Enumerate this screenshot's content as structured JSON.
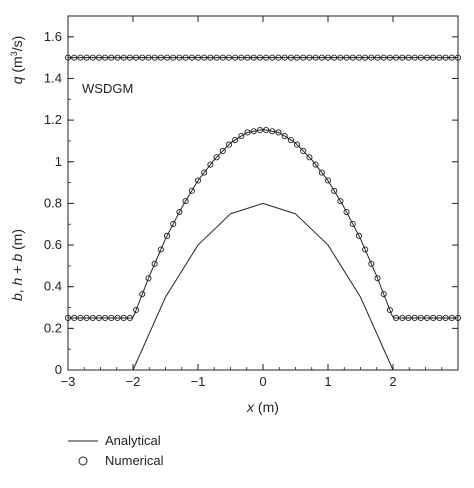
{
  "chart_data": {
    "type": "line",
    "annotation": "WSDGM",
    "xlabel": {
      "var": "x",
      "unit": " (m)"
    },
    "ylabel": {
      "lower_var1": "b",
      "sep": ", ",
      "lower_var2": "h",
      "plus": " + ",
      "lower_var3": "b",
      "lower_unit": " (m)",
      "upper_var": "q",
      "upper_unit_open": " (m",
      "upper_unit_sup": "3",
      "upper_unit_close": "/s)"
    },
    "xlim": [
      -3,
      3
    ],
    "ylim": [
      0,
      1.7
    ],
    "x_ticks": [
      "−3",
      "−2",
      "−1",
      "0",
      "1",
      "2"
    ],
    "y_ticks": [
      "0",
      "0.2",
      "0.4",
      "0.6",
      "0.8",
      "1",
      "1.2",
      "1.4",
      "1.6"
    ],
    "grid": false,
    "legend": {
      "position": "below",
      "entries": [
        {
          "label": "Analytical",
          "marker": "line"
        },
        {
          "label": "Numerical",
          "marker": "circle"
        }
      ]
    },
    "series": [
      {
        "name": "Analytical",
        "role": "discharge q",
        "style": "line",
        "x": [
          -3,
          3
        ],
        "y": [
          1.5,
          1.5
        ]
      },
      {
        "name": "Numerical",
        "role": "discharge q",
        "style": "circles",
        "x": [
          -3,
          3
        ],
        "y": [
          1.5,
          1.5
        ],
        "points": 64
      },
      {
        "name": "Analytical",
        "role": "free surface h+b",
        "style": "line",
        "x": [
          -3,
          -2,
          -1.75,
          -1.5,
          -1.25,
          -1,
          -0.75,
          -0.5,
          -0.25,
          0,
          0.25,
          0.5,
          0.75,
          1,
          1.25,
          1.5,
          1.75,
          2,
          3
        ],
        "y": [
          0.25,
          0.25,
          0.45,
          0.63,
          0.78,
          0.91,
          1.01,
          1.09,
          1.14,
          1.155,
          1.14,
          1.09,
          1.01,
          0.91,
          0.78,
          0.63,
          0.45,
          0.25,
          0.25
        ]
      },
      {
        "name": "Numerical",
        "role": "free surface h+b",
        "style": "circles",
        "x": [
          -3,
          -2,
          -1.75,
          -1.5,
          -1.25,
          -1,
          -0.75,
          -0.5,
          -0.25,
          0,
          0.25,
          0.5,
          0.75,
          1,
          1.25,
          1.5,
          1.75,
          2,
          3
        ],
        "y": [
          0.25,
          0.25,
          0.45,
          0.63,
          0.78,
          0.91,
          1.01,
          1.09,
          1.14,
          1.155,
          1.14,
          1.09,
          1.01,
          0.91,
          0.78,
          0.63,
          0.45,
          0.25,
          0.25
        ],
        "points": 64
      },
      {
        "name": "",
        "role": "bed b",
        "style": "line",
        "x": [
          -2,
          -1.5,
          -1,
          -0.5,
          0,
          0.5,
          1,
          1.5,
          2
        ],
        "y": [
          0,
          0.35,
          0.6,
          0.75,
          0.8,
          0.75,
          0.6,
          0.35,
          0
        ]
      }
    ]
  }
}
